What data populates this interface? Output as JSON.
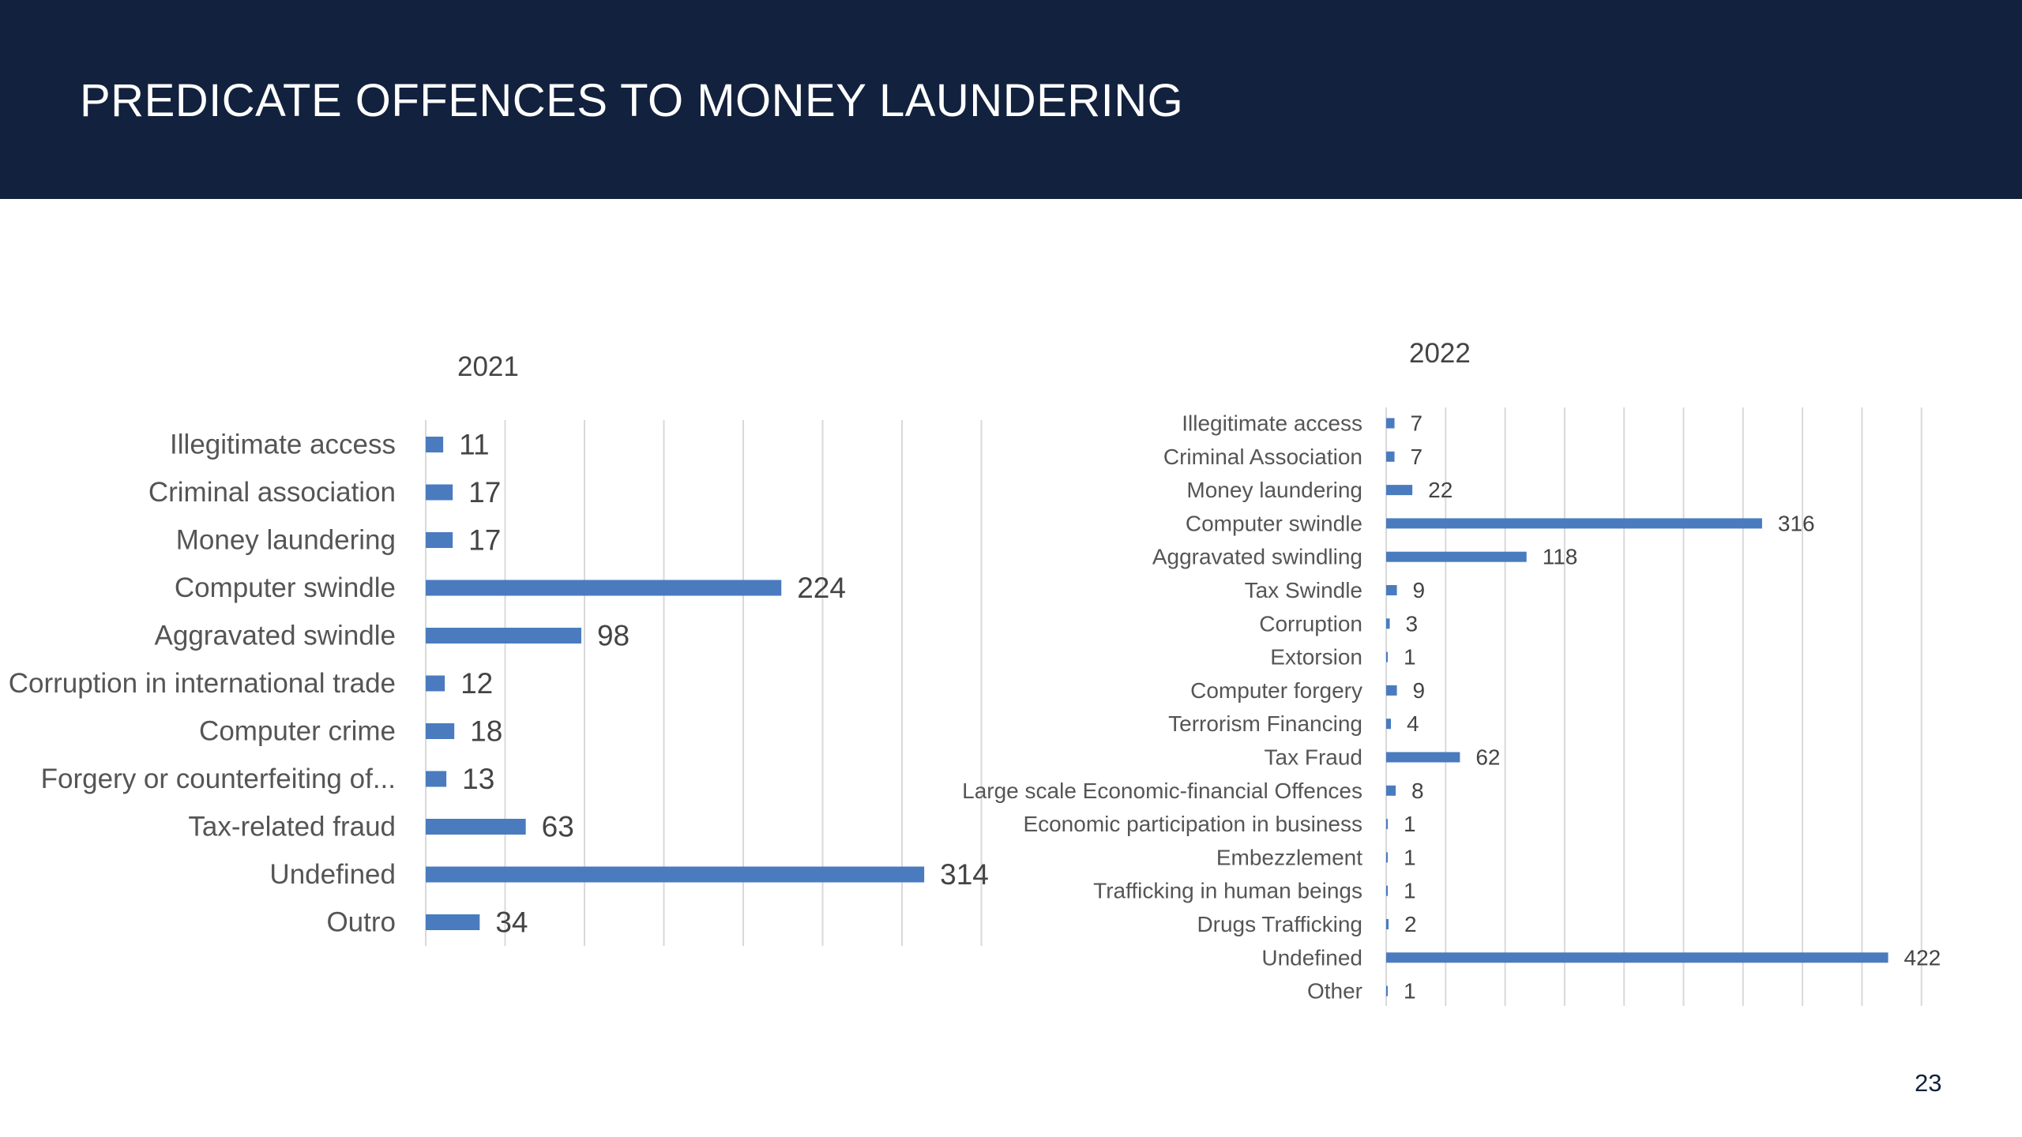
{
  "slide": {
    "title": "PREDICATE OFFENCES TO MONEY LAUNDERING",
    "page_number": "23"
  },
  "colors": {
    "header_bg": "#12213d",
    "bar": "#4a7bbf",
    "grid": "#d9d9d9"
  },
  "chart_data": [
    {
      "type": "bar",
      "orientation": "horizontal",
      "title": "2021",
      "xlim": [
        0,
        350
      ],
      "grid": true,
      "categories": [
        "Illegitimate access",
        "Criminal association",
        "Money laundering",
        "Computer swindle",
        "Aggravated swindle",
        "Corruption in international trade",
        "Computer crime",
        "Forgery or counterfeiting of...",
        "Tax-related fraud",
        "Undefined",
        "Outro"
      ],
      "values": [
        11,
        17,
        17,
        224,
        98,
        12,
        18,
        13,
        63,
        314,
        34
      ]
    },
    {
      "type": "bar",
      "orientation": "horizontal",
      "title": "2022",
      "xlim": [
        0,
        450
      ],
      "grid": true,
      "categories": [
        "Illegitimate access",
        "Criminal Association",
        "Money laundering",
        "Computer swindle",
        "Aggravated swindling",
        "Tax Swindle",
        "Corruption",
        "Extorsion",
        "Computer forgery",
        "Terrorism Financing",
        "Tax Fraud",
        "Large scale Economic-financial Offences",
        "Economic participation in business",
        "Embezzlement",
        "Trafficking in human beings",
        "Drugs Trafficking",
        "Undefined",
        "Other"
      ],
      "values": [
        7,
        7,
        22,
        316,
        118,
        9,
        3,
        1,
        9,
        4,
        62,
        8,
        1,
        1,
        1,
        2,
        422,
        1
      ]
    }
  ]
}
